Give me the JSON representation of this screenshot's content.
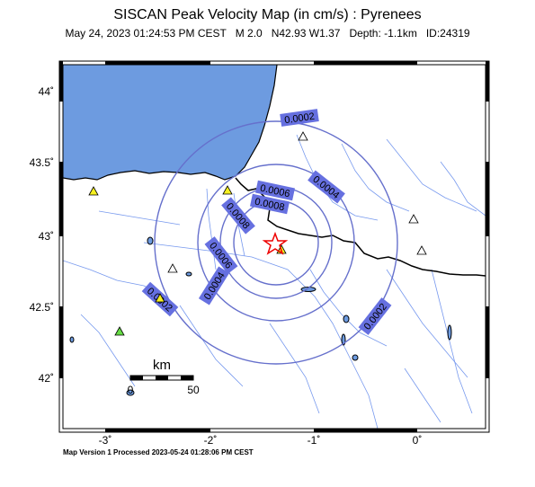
{
  "header": {
    "title": "SISCAN Peak Velocity Map (in cm/s) : Pyrenees",
    "date": "May 24, 2023 01:24:53 PM CEST",
    "magnitude": "M 2.0",
    "location": "N42.93 W1.37",
    "depth": "Depth: -1.1km",
    "event_id": "ID:24319"
  },
  "axes": {
    "lat_ticks": [
      "44˚",
      "43.5˚",
      "43˚",
      "42.5˚",
      "42˚"
    ],
    "lon_ticks": [
      "-3˚",
      "-2˚",
      "-1˚",
      "0˚"
    ]
  },
  "contours": [
    {
      "label": "0.0002"
    },
    {
      "label": "0.0004"
    },
    {
      "label": "0.0006"
    },
    {
      "label": "0.0008"
    }
  ],
  "contour_labels": [
    "0.0002",
    "0.0004",
    "0.0006",
    "0.0008",
    "0.0002",
    "0.0004",
    "0.0006",
    "0.0008",
    "0.0002"
  ],
  "scale_bar": {
    "unit": "km",
    "start": "0",
    "end": "50"
  },
  "footer": "Map Version 1 Processed 2023-05-24 01:28:06 PM CEST",
  "colors": {
    "sea": "#6d9be0",
    "contour": "#6670cc",
    "label_bg": "#6670e0",
    "river": "#7799ee",
    "epicenter": "#ee0000",
    "station_yellow": "#f6f020",
    "station_green": "#66dd44",
    "station_white": "#ffffff"
  },
  "stations": [
    {
      "name": "station-yellow",
      "color": "yellow"
    },
    {
      "name": "station-green",
      "color": "green"
    },
    {
      "name": "station-white",
      "color": "white"
    }
  ]
}
